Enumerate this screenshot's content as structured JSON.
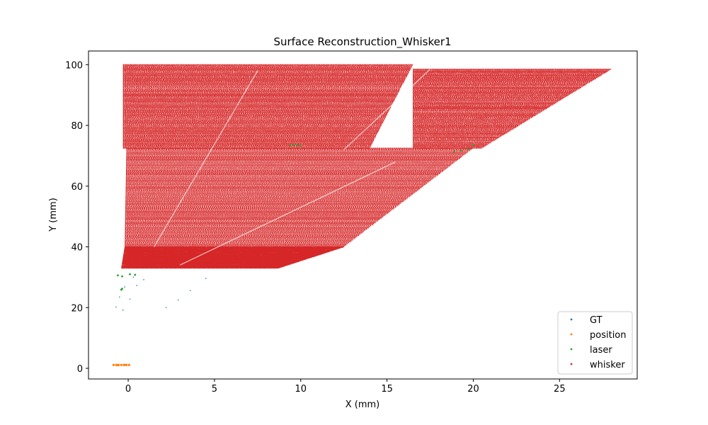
{
  "chart_data": {
    "type": "scatter",
    "title": "Surface Reconstruction_Whisker1",
    "xlabel": "X (mm)",
    "ylabel": "Y (mm)",
    "xlim": [
      -2.3,
      29.5
    ],
    "ylim": [
      -3.5,
      104.5
    ],
    "xticks": [
      0,
      5,
      10,
      15,
      20,
      25
    ],
    "yticks": [
      0,
      20,
      40,
      60,
      80,
      100
    ],
    "grid": false,
    "legend_position": "lower-right",
    "series": [
      {
        "name": "GT",
        "color": "#1f77b4",
        "points": [
          [
            -0.7,
            20.2
          ],
          [
            -0.3,
            19.2
          ],
          [
            0.1,
            22.8
          ],
          [
            -0.5,
            23.5
          ],
          [
            0.5,
            27.3
          ],
          [
            0.9,
            29.2
          ],
          [
            2.2,
            20.0
          ],
          [
            2.9,
            22.5
          ],
          [
            3.6,
            25.6
          ],
          [
            4.5,
            29.6
          ],
          [
            -0.2,
            26.8
          ],
          [
            0.3,
            30.0
          ]
        ]
      },
      {
        "name": "position",
        "color": "#ff7f0e",
        "points": [
          [
            -0.85,
            1.1
          ],
          [
            -0.7,
            1.1
          ],
          [
            -0.55,
            1.1
          ],
          [
            -0.4,
            1.1
          ],
          [
            -0.25,
            1.1
          ],
          [
            -0.1,
            1.1
          ],
          [
            0.05,
            1.1
          ],
          [
            -0.2,
            1.15
          ],
          [
            -0.6,
            1.05
          ]
        ]
      },
      {
        "name": "laser",
        "color": "#2ca02c",
        "points": [
          [
            -0.6,
            30.6
          ],
          [
            -0.35,
            30.3
          ],
          [
            0.1,
            31.0
          ],
          [
            0.4,
            30.8
          ],
          [
            -0.4,
            25.9
          ],
          [
            -0.35,
            26.2
          ],
          [
            9.4,
            73.4
          ],
          [
            9.6,
            73.6
          ],
          [
            9.8,
            73.5
          ],
          [
            10.0,
            73.3
          ],
          [
            18.9,
            71.4
          ],
          [
            19.3,
            71.6
          ],
          [
            19.7,
            72.2
          ],
          [
            20.0,
            73.4
          ]
        ]
      },
      {
        "name": "whisker",
        "color": "#d62728",
        "regions": [
          {
            "x_left": [
              -0.4,
              -0.2
            ],
            "y": [
              33.0,
              40.0
            ],
            "x_right": [
              8.7,
              12.5
            ]
          },
          {
            "x_left": [
              -0.2,
              -0.1
            ],
            "y": [
              40.0,
              72.5
            ],
            "x_right": [
              12.5,
              20.0
            ]
          },
          {
            "x_left": [
              -0.3,
              -0.3
            ],
            "y": [
              72.5,
              100.0
            ],
            "x_right": [
              14.0,
              16.5
            ]
          },
          {
            "x_left": [
              16.5,
              16.5
            ],
            "y": [
              72.5,
              98.5
            ],
            "x_right": [
              20.5,
              28.0
            ]
          }
        ]
      }
    ]
  }
}
